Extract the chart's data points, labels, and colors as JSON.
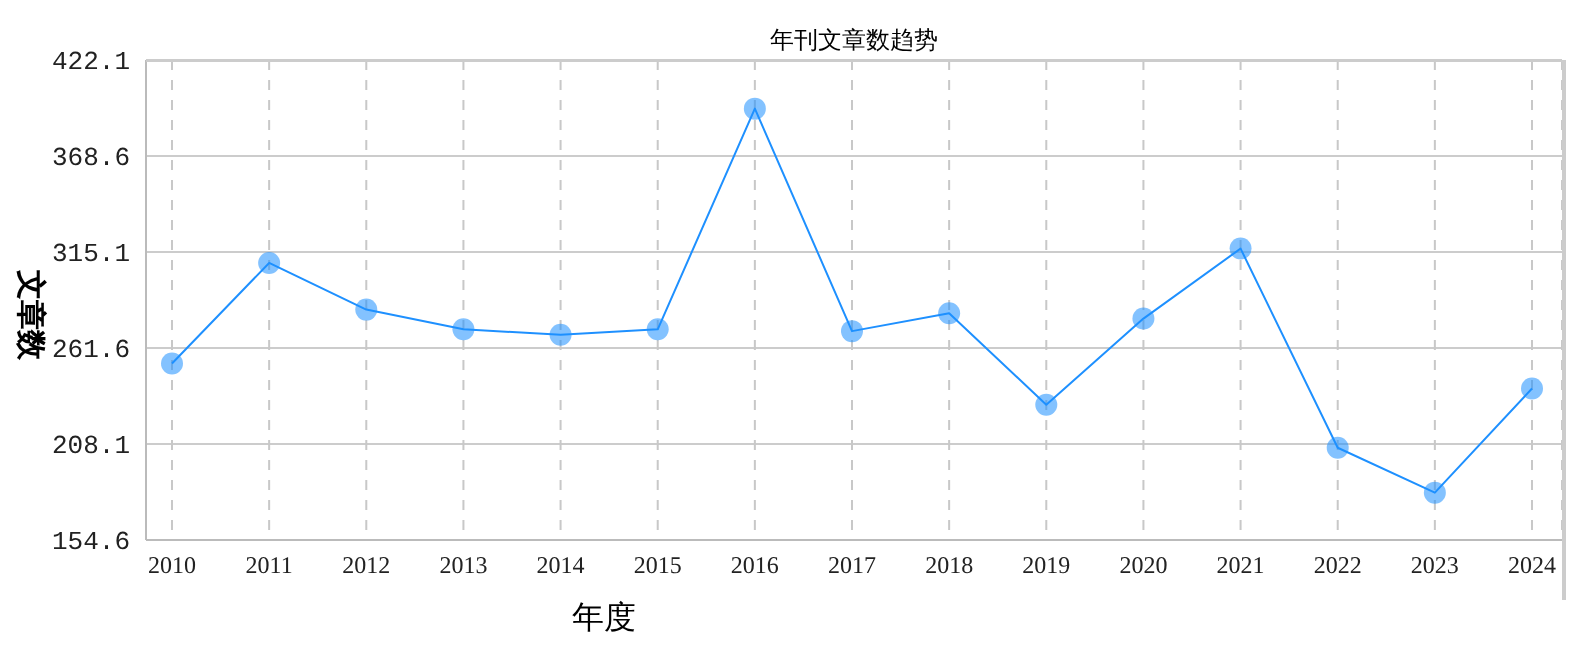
{
  "chart_data": {
    "type": "line",
    "title": "年刊文章数趋势",
    "xlabel": "年度",
    "ylabel": "文章数",
    "categories": [
      "2010",
      "2011",
      "2012",
      "2013",
      "2014",
      "2015",
      "2016",
      "2017",
      "2018",
      "2019",
      "2020",
      "2021",
      "2022",
      "2023",
      "2024"
    ],
    "series": [
      {
        "color": "#1e90ff",
        "values": [
          253,
          309,
          283,
          272,
          269,
          272,
          395,
          271,
          281,
          230,
          278,
          317,
          206,
          181,
          239
        ]
      }
    ],
    "ylim": [
      154.6,
      422.1
    ],
    "yticks": [
      154.6,
      208.1,
      261.6,
      315.1,
      368.6,
      422.1
    ],
    "grid": true,
    "marker": "circle",
    "line_style": "solid",
    "legend": false
  }
}
